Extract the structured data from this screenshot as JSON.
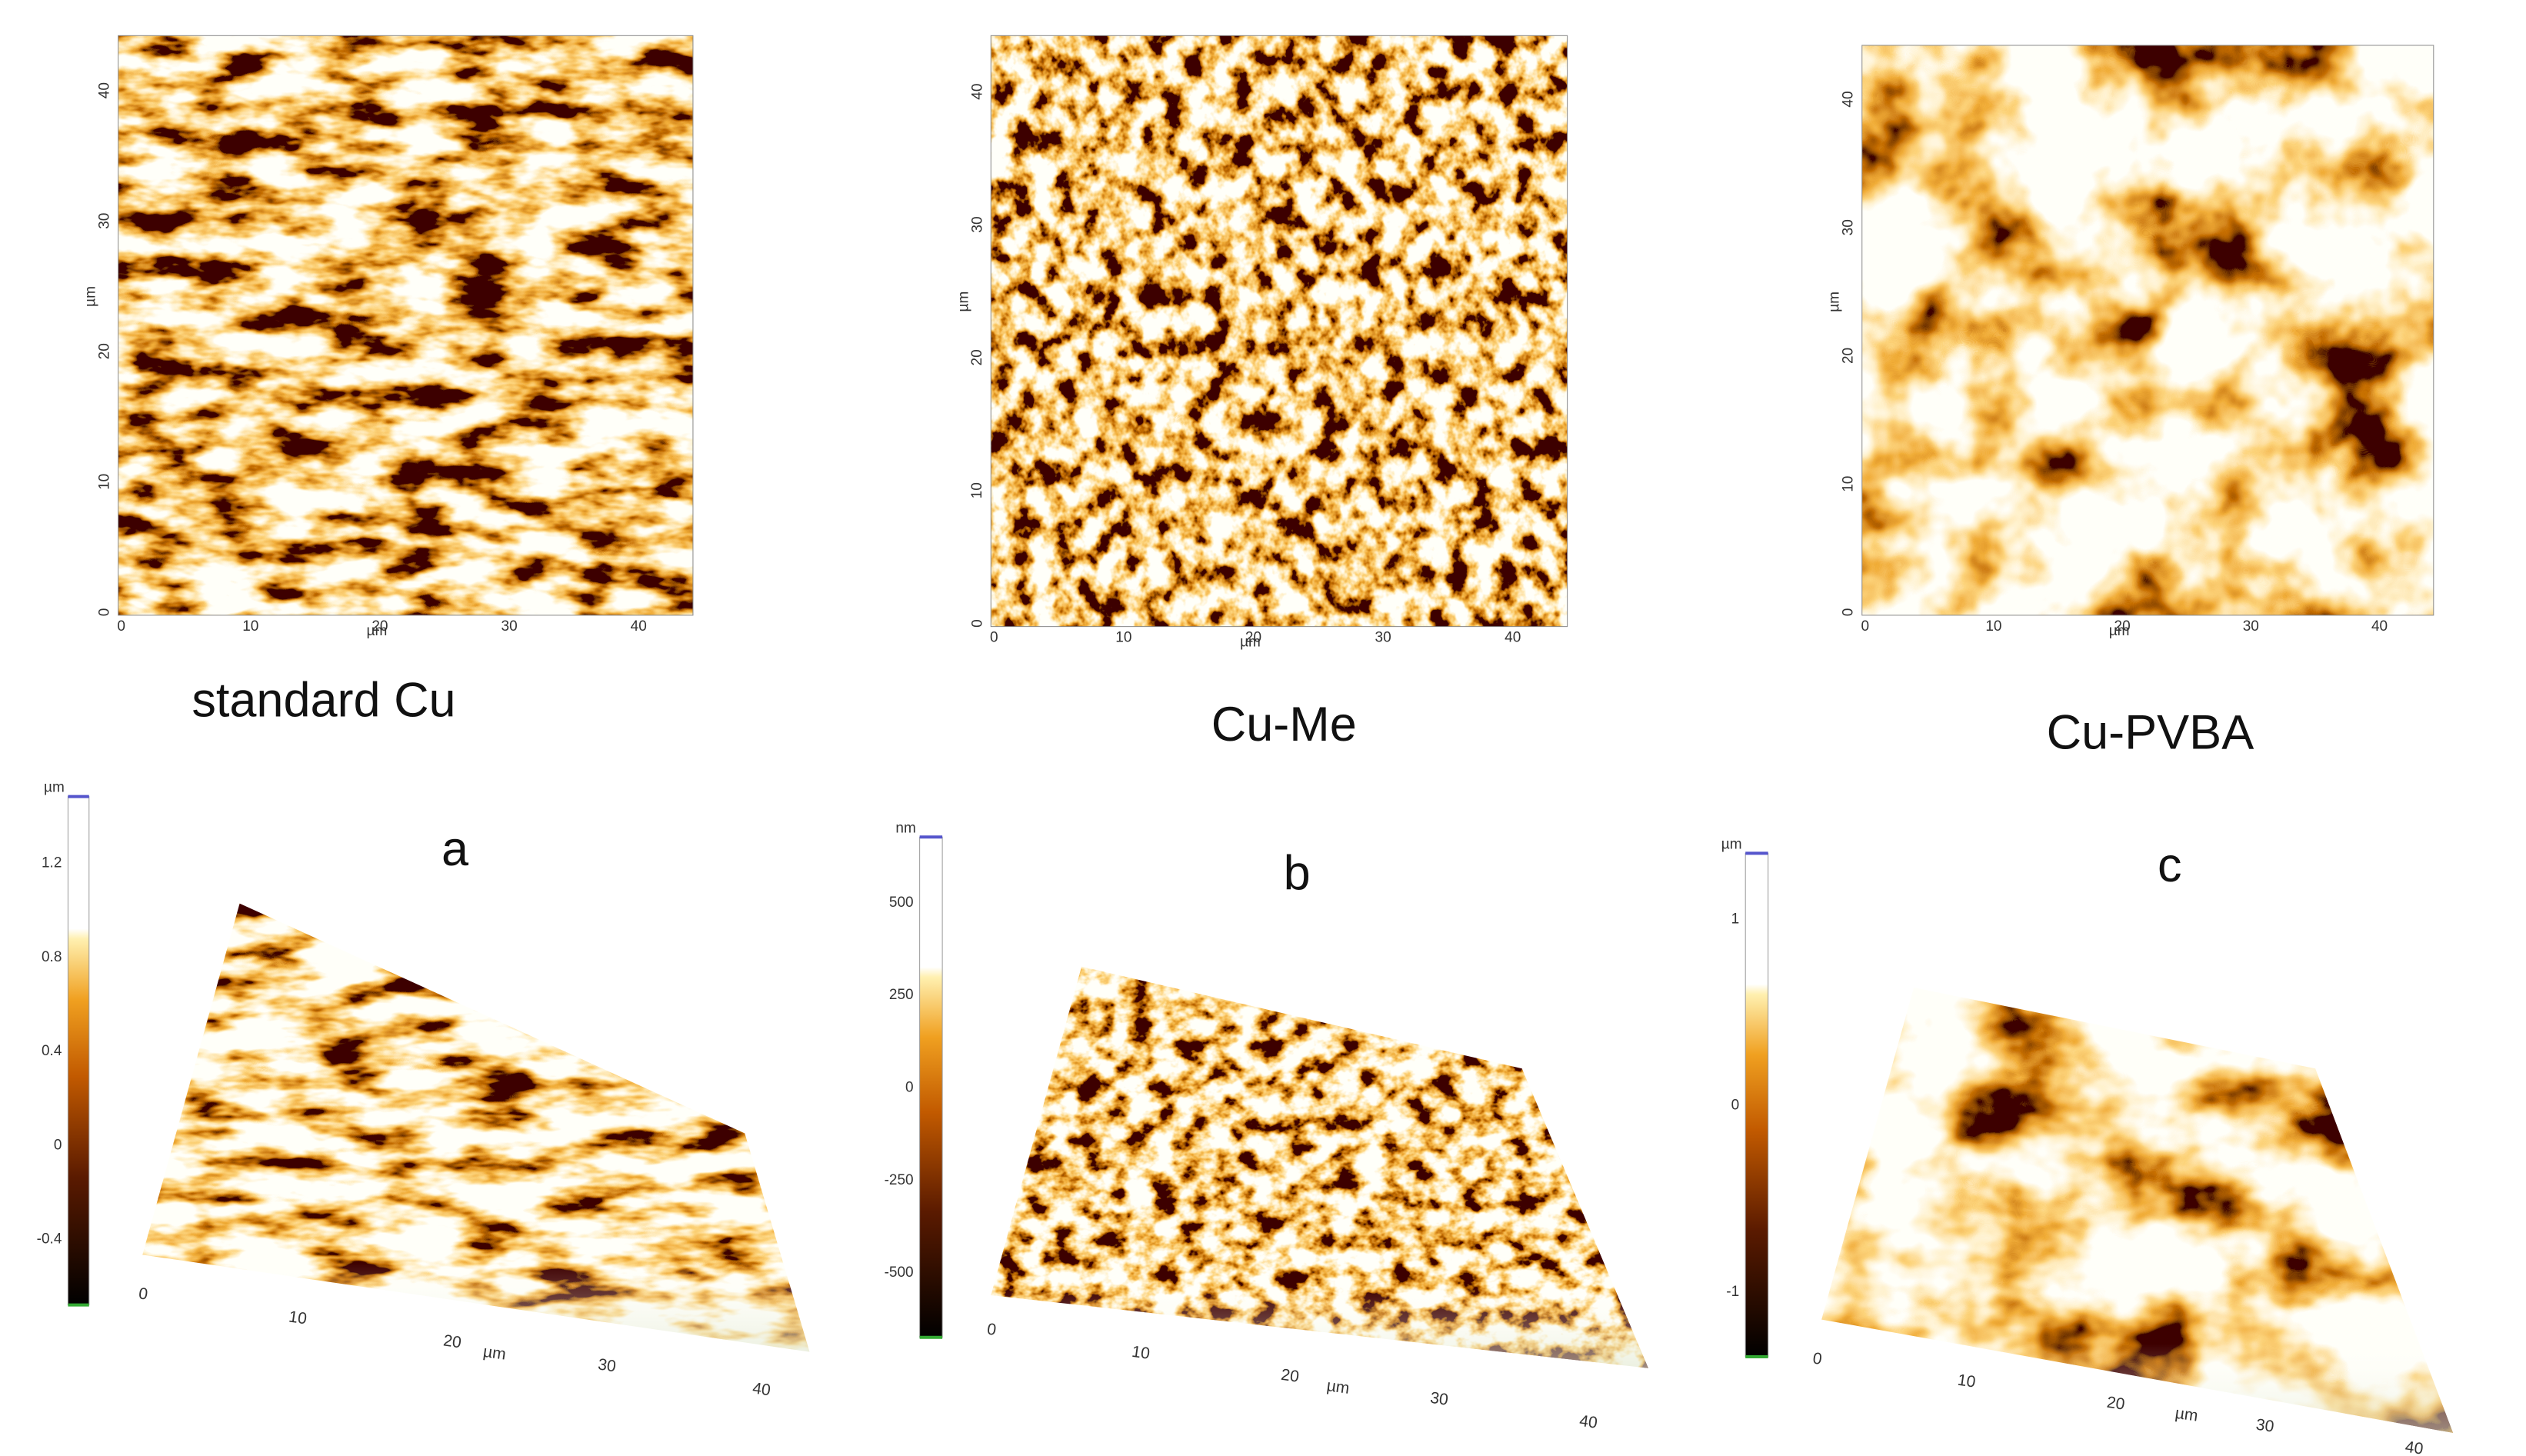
{
  "panels": [
    {
      "label": "standard Cu",
      "letter": "a",
      "map_axis": {
        "x_ticks": [
          "0",
          "10",
          "20",
          "30",
          "40"
        ],
        "y_ticks": [
          "0",
          "10",
          "20",
          "30",
          "40"
        ],
        "unit": "µm"
      },
      "colorbar": {
        "unit": "µm",
        "ticks": [
          "1.2",
          "0.8",
          "0.4",
          "0",
          "-0.4"
        ]
      },
      "surface_axis": {
        "ticks": [
          "0",
          "10",
          "20",
          "30",
          "40"
        ],
        "unit": "µm"
      }
    },
    {
      "label": "Cu-Me",
      "letter": "b",
      "map_axis": {
        "x_ticks": [
          "0",
          "10",
          "20",
          "30",
          "40"
        ],
        "y_ticks": [
          "0",
          "10",
          "20",
          "30",
          "40"
        ],
        "unit": "µm"
      },
      "colorbar": {
        "unit": "nm",
        "ticks": [
          "500",
          "250",
          "0",
          "-250",
          "-500"
        ]
      },
      "surface_axis": {
        "ticks": [
          "0",
          "10",
          "20",
          "30",
          "40"
        ],
        "unit": "µm"
      }
    },
    {
      "label": "Cu-PVBA",
      "letter": "c",
      "map_axis": {
        "x_ticks": [
          "0",
          "10",
          "20",
          "30",
          "40"
        ],
        "y_ticks": [
          "0",
          "10",
          "20",
          "30",
          "40"
        ],
        "unit": "µm"
      },
      "colorbar": {
        "unit": "µm",
        "ticks": [
          "1",
          "0",
          "-1"
        ]
      },
      "surface_axis": {
        "ticks": [
          "0",
          "10",
          "20",
          "30",
          "40"
        ],
        "unit": "µm"
      }
    }
  ]
}
